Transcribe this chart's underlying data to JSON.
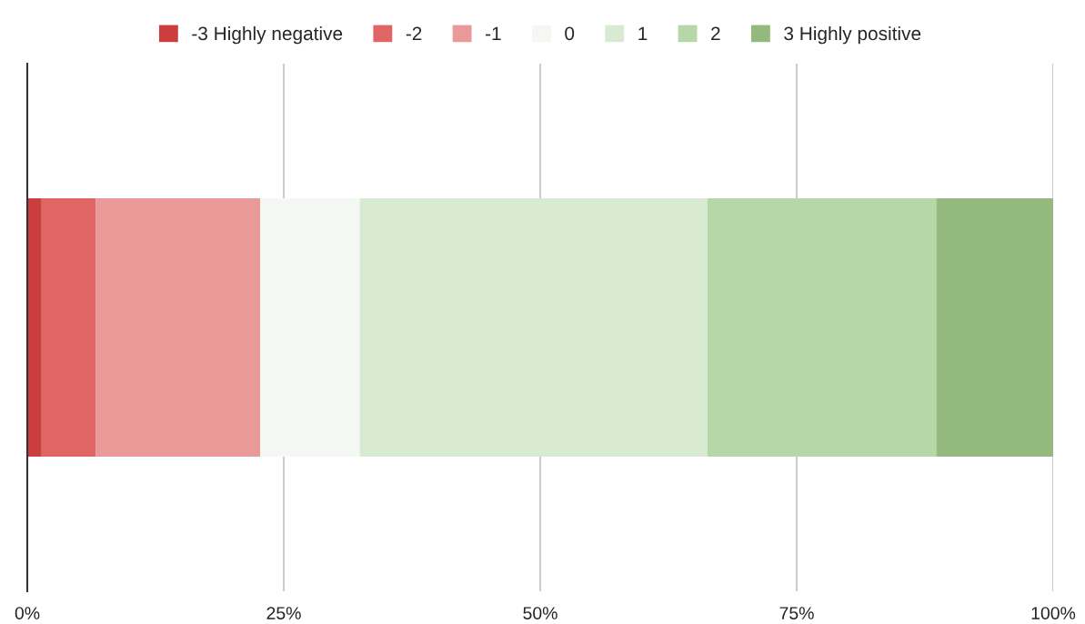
{
  "chart_data": {
    "type": "bar",
    "orientation": "horizontal",
    "stacked": true,
    "categories": [
      null
    ],
    "series": [
      {
        "name": "-3 Highly negative",
        "color": "#cc3d3d",
        "values": [
          1.4
        ]
      },
      {
        "name": "-2",
        "color": "#e06666",
        "values": [
          5.3
        ]
      },
      {
        "name": "-1",
        "color": "#ea9999",
        "values": [
          16.0
        ]
      },
      {
        "name": "0",
        "color": "#f5f7f3",
        "values": [
          9.7
        ]
      },
      {
        "name": "1",
        "color": "#d9ead3",
        "values": [
          33.9
        ]
      },
      {
        "name": "2",
        "color": "#b6d7a8",
        "values": [
          22.3
        ]
      },
      {
        "name": "3 Highly positive",
        "color": "#93b97f",
        "values": [
          11.4
        ]
      }
    ],
    "xlim": [
      0,
      100
    ],
    "xticks": [
      {
        "value": 0,
        "label": "0%"
      },
      {
        "value": 25,
        "label": "25%"
      },
      {
        "value": 50,
        "label": "50%"
      },
      {
        "value": 75,
        "label": "75%"
      },
      {
        "value": 100,
        "label": "100%"
      }
    ],
    "grid": "x",
    "legend": "top",
    "tick_labels": "x"
  }
}
